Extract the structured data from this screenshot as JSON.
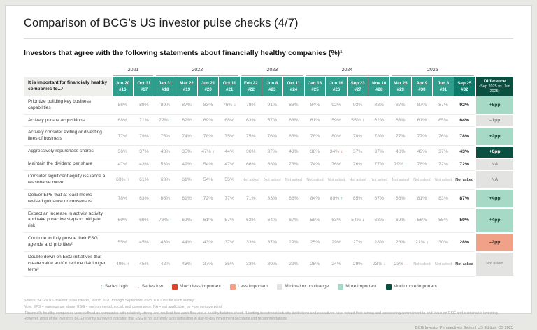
{
  "page": {
    "title": "Comparison of BCG’s US investor pulse checks (4/7)",
    "subtitle": "Investors that agree with the following statements about financially healthy companies (%)¹",
    "footer_right": "BCG Investor Perspectives Series | US Edition, Q3 2025"
  },
  "colors": {
    "teal": "#2f9e8d",
    "teal_dark": "#0e7b6a",
    "diff_header": "#0b4f41",
    "green_light": "#a6dac7",
    "green_dark": "#0b4f41",
    "gray_cell": "#e3e3e1",
    "salmon": "#f0a188",
    "red": "#d9452b",
    "arrow_up": "#2f9e8d",
    "arrow_down": "#d9452b"
  },
  "table": {
    "row_header": "It is important for financially healthy companies to...¹",
    "year_groups": [
      {
        "label": "2021",
        "span": 2
      },
      {
        "label": "2022",
        "span": 4
      },
      {
        "label": "2023",
        "span": 3
      },
      {
        "label": "2024",
        "span": 4
      },
      {
        "label": "2025",
        "span": 4
      }
    ],
    "columns": [
      {
        "date": "Jun 20",
        "num": "#16"
      },
      {
        "date": "Oct 31",
        "num": "#17"
      },
      {
        "date": "Jan 31",
        "num": "#18"
      },
      {
        "date": "Mar 22",
        "num": "#19"
      },
      {
        "date": "Jun 21",
        "num": "#20"
      },
      {
        "date": "Oct 11",
        "num": "#21"
      },
      {
        "date": "Feb 22",
        "num": "#22"
      },
      {
        "date": "Jun 8",
        "num": "#23"
      },
      {
        "date": "Oct 11",
        "num": "#24"
      },
      {
        "date": "Jan 18",
        "num": "#25"
      },
      {
        "date": "Jun 16",
        "num": "#26"
      },
      {
        "date": "Sep 23",
        "num": "#27"
      },
      {
        "date": "Nov 10",
        "num": "#28"
      },
      {
        "date": "Mar 25",
        "num": "#29"
      },
      {
        "date": "Apr 9",
        "num": "#30"
      },
      {
        "date": "Jun 8",
        "num": "#31"
      },
      {
        "date": "Sep 25",
        "num": "#32"
      }
    ],
    "diff_header": {
      "title": "Difference",
      "sub": "(Sep 2025 vs. Jun 2025)"
    },
    "rows": [
      {
        "label": "Prioritize building key business capabilities",
        "values": [
          "86%",
          "89%",
          "89%",
          "87%",
          "83%",
          "76%↓",
          "78%",
          "91%",
          "88%",
          "84%",
          "92%",
          "93%",
          "88%",
          "87%",
          "87%",
          "87%",
          "92%"
        ],
        "diff": {
          "text": "+5pp",
          "type": "more"
        }
      },
      {
        "label": "Actively pursue acquisitions",
        "values": [
          "68%",
          "71%",
          "72%↑",
          "62%",
          "69%",
          "68%",
          "63%",
          "57%",
          "63%",
          "61%",
          "59%",
          "55%↓",
          "62%",
          "63%",
          "61%",
          "65%",
          "64%"
        ],
        "diff": {
          "text": "–1pp",
          "type": "minimal"
        }
      },
      {
        "label": "Actively consider exiting or divesting lines of business",
        "values": [
          "77%",
          "79%",
          "75%",
          "74%",
          "78%",
          "75%",
          "75%",
          "76%",
          "83%",
          "78%",
          "80%",
          "78%",
          "78%",
          "77%",
          "77%",
          "76%",
          "78%"
        ],
        "diff": {
          "text": "+2pp",
          "type": "more"
        }
      },
      {
        "label": "Aggressively repurchase shares",
        "values": [
          "36%",
          "37%",
          "43%",
          "35%",
          "47%↑",
          "44%",
          "36%",
          "37%",
          "43%",
          "38%",
          "34%↓",
          "37%",
          "37%",
          "40%",
          "43%",
          "37%",
          "43%"
        ],
        "diff": {
          "text": "+6pp",
          "type": "much_more"
        }
      },
      {
        "label": "Maintain the dividend per share",
        "values": [
          "47%",
          "43%",
          "53%",
          "49%",
          "54%",
          "47%",
          "66%",
          "68%",
          "73%",
          "74%",
          "76%",
          "76%",
          "77%",
          "79%↑",
          "78%",
          "72%",
          "72%"
        ],
        "diff": {
          "text": "NA",
          "type": "na"
        }
      },
      {
        "label": "Consider significant equity issuance a reasonable move",
        "values": [
          "63%↑",
          "61%",
          "63%",
          "61%",
          "54%",
          "55%",
          "Not asked",
          "Not asked",
          "Not asked",
          "Not asked",
          "Not asked",
          "Not asked",
          "Not asked",
          "Not asked",
          "Not asked",
          "Not asked",
          "Not asked"
        ],
        "diff": {
          "text": "NA",
          "type": "na"
        }
      },
      {
        "label": "Deliver EPS that at least meets revised guidance or consensus",
        "values": [
          "78%",
          "83%",
          "86%",
          "81%",
          "72%",
          "77%",
          "71%",
          "83%",
          "86%",
          "84%",
          "89%↑",
          "85%",
          "87%",
          "86%",
          "81%",
          "83%",
          "87%"
        ],
        "diff": {
          "text": "+4pp",
          "type": "more"
        }
      },
      {
        "label": "Expect an increase in activist activity and take proactive steps to mitigate risk",
        "values": [
          "69%",
          "69%",
          "73%↑",
          "62%",
          "61%",
          "57%",
          "63%",
          "64%",
          "67%",
          "58%",
          "63%",
          "54%↓",
          "63%",
          "62%",
          "56%",
          "55%",
          "59%"
        ],
        "diff": {
          "text": "+4pp",
          "type": "more"
        }
      },
      {
        "label": "Continue to fully pursue their ESG agenda and priorities²",
        "values": [
          "55%",
          "45%",
          "43%",
          "44%",
          "43%",
          "37%",
          "33%",
          "37%",
          "29%",
          "25%",
          "29%",
          "27%",
          "28%",
          "23%",
          "21%↓",
          "30%",
          "28%"
        ],
        "diff": {
          "text": "–2pp",
          "type": "less"
        }
      },
      {
        "label": "Double down on ESG initiatives that create value and/or reduce risk longer term²",
        "values": [
          "49%↑",
          "45%",
          "42%",
          "43%",
          "37%",
          "35%",
          "33%",
          "30%",
          "29%",
          "25%",
          "24%",
          "29%",
          "23%↓",
          "23%↓",
          "Not asked",
          "Not asked",
          "Not asked"
        ],
        "diff": {
          "text": "Not asked",
          "type": "not_asked"
        }
      }
    ]
  },
  "legend": {
    "series_high": {
      "symbol": "↑",
      "label": "Series high"
    },
    "series_low": {
      "symbol": "↓",
      "label": "Series low"
    },
    "items": [
      {
        "label": "Much less important",
        "color_key": "red"
      },
      {
        "label": "Less important",
        "color_key": "salmon"
      },
      {
        "label": "Minimal or no change",
        "color_key": "gray_cell"
      },
      {
        "label": "More important",
        "color_key": "green_light"
      },
      {
        "label": "Much more important",
        "color_key": "green_dark"
      }
    ]
  },
  "footnotes": [
    "Source: BCG’s US investor pulse checks, March 2020 through September 2025; n = ~150 for each survey.",
    "Note: EPS = earnings per share; ESG = environmental, social, and governance; NA = not applicable; pp = percentage point.",
    "¹Financially healthy companies were defined as companies with relatively strong and resilient free cash flow and a healthy balance sheet. ²Leading investment industry institutions and executives have voiced their strong and unwavering commitment to and focus on ESG and sustainable investing. However, most of the investors BCG recently surveyed indicated that ESG is not currently a consideration in day-to-day investment decisions and recommendations."
  ]
}
